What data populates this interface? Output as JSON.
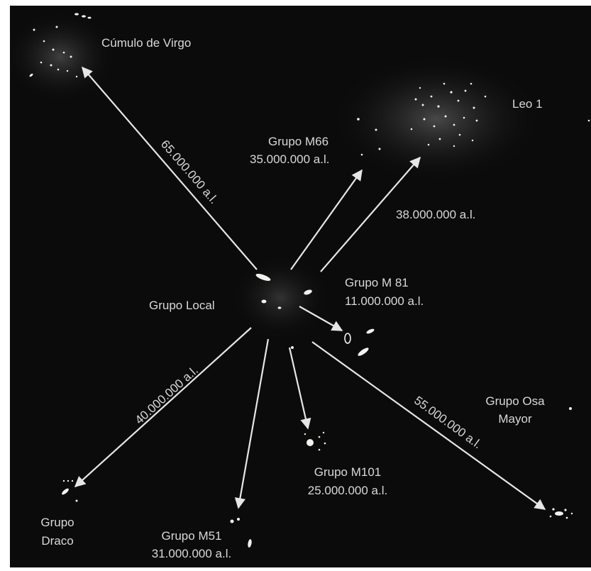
{
  "diagram": {
    "center": {
      "name": "Grupo Local"
    },
    "groups": [
      {
        "id": "virgo",
        "name": "Cúmulo de Virgo",
        "distance": "65.000.000 a.l."
      },
      {
        "id": "leo",
        "name": "Leo 1",
        "distance": "38.000.000 a.l."
      },
      {
        "id": "m66",
        "name": "Grupo M66",
        "distance": "35.000.000 a.l."
      },
      {
        "id": "m81",
        "name": "Grupo M 81",
        "distance": "11.000.000 a.l."
      },
      {
        "id": "osa-mayor",
        "name_line1": "Grupo Osa",
        "name_line2": "Mayor",
        "distance": "55.000.000 a.l."
      },
      {
        "id": "m101",
        "name": "Grupo M101",
        "distance": "25.000.000 a.l."
      },
      {
        "id": "m51",
        "name": "Grupo M51",
        "distance": "31.000.000 a.l."
      },
      {
        "id": "draco",
        "name_line1": "Grupo",
        "name_line2": "Draco",
        "distance": "40.000.000 a.l."
      }
    ]
  },
  "colors": {
    "background": "#0b0b0b",
    "arrow": "#e6e6e6",
    "text": "#d8d8d8",
    "galaxy": "#f2f2ee"
  }
}
